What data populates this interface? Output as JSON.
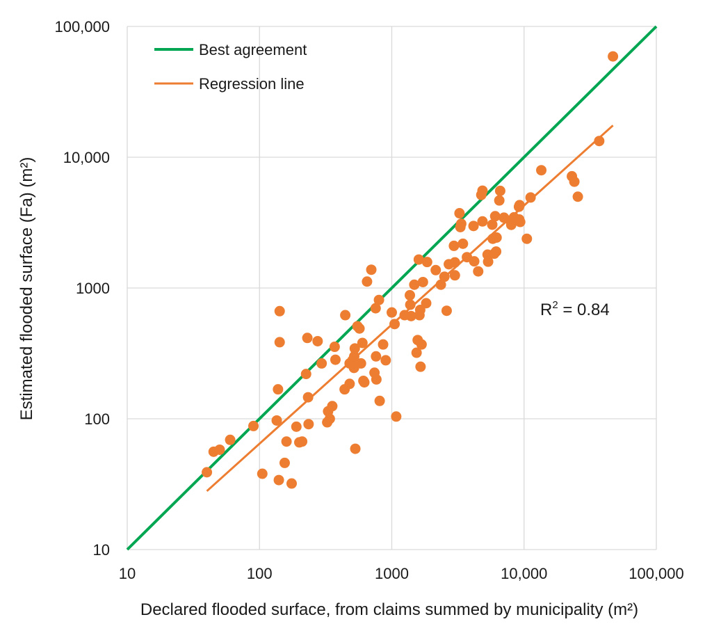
{
  "chart_data": {
    "type": "scatter",
    "title": "",
    "xlabel": "Declared flooded surface, from claims summed by municipality (m²)",
    "ylabel": "Estimated flooded surface (Fa) (m²)",
    "x_scale": "log",
    "y_scale": "log",
    "xlim": [
      10,
      100000
    ],
    "ylim": [
      10,
      100000
    ],
    "x_tick_labels": [
      "10",
      "100",
      "1000",
      "10,000",
      "100,000"
    ],
    "y_tick_labels": [
      "10",
      "100",
      "1000",
      "10,000",
      "100,000"
    ],
    "grid": true,
    "legend_position": "top-left",
    "colors": {
      "points": "#ED7D31",
      "best": "#00A651",
      "regression": "#ED7D31",
      "grid": "#d9d9d9"
    },
    "series": [
      {
        "name": "Best agreement",
        "kind": "line",
        "points": [
          [
            10,
            10
          ],
          [
            100000,
            100000
          ]
        ]
      },
      {
        "name": "Regression line",
        "kind": "line",
        "points": [
          [
            40,
            28
          ],
          [
            47000,
            17500
          ]
        ]
      },
      {
        "name": "",
        "kind": "scatter",
        "points": [
          [
            40,
            39
          ],
          [
            45,
            56
          ],
          [
            50,
            58
          ],
          [
            60,
            69
          ],
          [
            90,
            88
          ],
          [
            105,
            38
          ],
          [
            135,
            97
          ],
          [
            138,
            168
          ],
          [
            140,
            34
          ],
          [
            142,
            385
          ],
          [
            142,
            665
          ],
          [
            155,
            46
          ],
          [
            160,
            67
          ],
          [
            175,
            32
          ],
          [
            190,
            87
          ],
          [
            200,
            66
          ],
          [
            210,
            67
          ],
          [
            225,
            220
          ],
          [
            230,
            415
          ],
          [
            233,
            146
          ],
          [
            235,
            91
          ],
          [
            275,
            392
          ],
          [
            295,
            265
          ],
          [
            325,
            94
          ],
          [
            330,
            114
          ],
          [
            340,
            100
          ],
          [
            355,
            125
          ],
          [
            370,
            355
          ],
          [
            375,
            283
          ],
          [
            440,
            168
          ],
          [
            445,
            620
          ],
          [
            480,
            185
          ],
          [
            480,
            265
          ],
          [
            505,
            280
          ],
          [
            518,
            245
          ],
          [
            520,
            300
          ],
          [
            525,
            345
          ],
          [
            530,
            59
          ],
          [
            550,
            510
          ],
          [
            570,
            490
          ],
          [
            585,
            265
          ],
          [
            600,
            380
          ],
          [
            610,
            195
          ],
          [
            620,
            190
          ],
          [
            650,
            1120
          ],
          [
            700,
            1380
          ],
          [
            740,
            225
          ],
          [
            755,
            700
          ],
          [
            760,
            300
          ],
          [
            765,
            200
          ],
          [
            800,
            810
          ],
          [
            810,
            137
          ],
          [
            860,
            370
          ],
          [
            900,
            280
          ],
          [
            1000,
            650
          ],
          [
            1050,
            530
          ],
          [
            1080,
            104
          ],
          [
            1250,
            620
          ],
          [
            1370,
            880
          ],
          [
            1380,
            745
          ],
          [
            1400,
            610
          ],
          [
            1480,
            1060
          ],
          [
            1540,
            320
          ],
          [
            1570,
            400
          ],
          [
            1600,
            1650
          ],
          [
            1620,
            620
          ],
          [
            1640,
            680
          ],
          [
            1650,
            250
          ],
          [
            1680,
            370
          ],
          [
            1720,
            1110
          ],
          [
            1820,
            765
          ],
          [
            1850,
            1580
          ],
          [
            2150,
            1370
          ],
          [
            2350,
            1060
          ],
          [
            2500,
            1220
          ],
          [
            2600,
            670
          ],
          [
            2700,
            1520
          ],
          [
            2950,
            2100
          ],
          [
            3000,
            1570
          ],
          [
            3000,
            1250
          ],
          [
            3250,
            3730
          ],
          [
            3300,
            2920
          ],
          [
            3350,
            3100
          ],
          [
            3450,
            2180
          ],
          [
            3700,
            1720
          ],
          [
            4150,
            2980
          ],
          [
            4200,
            1600
          ],
          [
            4500,
            1340
          ],
          [
            4750,
            5150
          ],
          [
            4850,
            5550
          ],
          [
            4850,
            3230
          ],
          [
            5300,
            1800
          ],
          [
            5350,
            1590
          ],
          [
            5750,
            3050
          ],
          [
            5800,
            2380
          ],
          [
            5950,
            1830
          ],
          [
            6050,
            3540
          ],
          [
            6150,
            1900
          ],
          [
            6200,
            2430
          ],
          [
            6500,
            4670
          ],
          [
            6600,
            5530
          ],
          [
            7050,
            3450
          ],
          [
            7900,
            3280
          ],
          [
            8000,
            3040
          ],
          [
            8400,
            3470
          ],
          [
            9150,
            4180
          ],
          [
            9200,
            3340
          ],
          [
            9250,
            4300
          ],
          [
            9350,
            3200
          ],
          [
            10500,
            2380
          ],
          [
            11200,
            4920
          ],
          [
            13500,
            7950
          ],
          [
            23000,
            7150
          ],
          [
            24000,
            6500
          ],
          [
            25500,
            4990
          ],
          [
            37000,
            13300
          ],
          [
            47000,
            59000
          ]
        ]
      }
    ],
    "annotation": {
      "text": "R",
      "sup": "2",
      "rest": " = 0.84",
      "x": 1500,
      "y": 700
    }
  }
}
